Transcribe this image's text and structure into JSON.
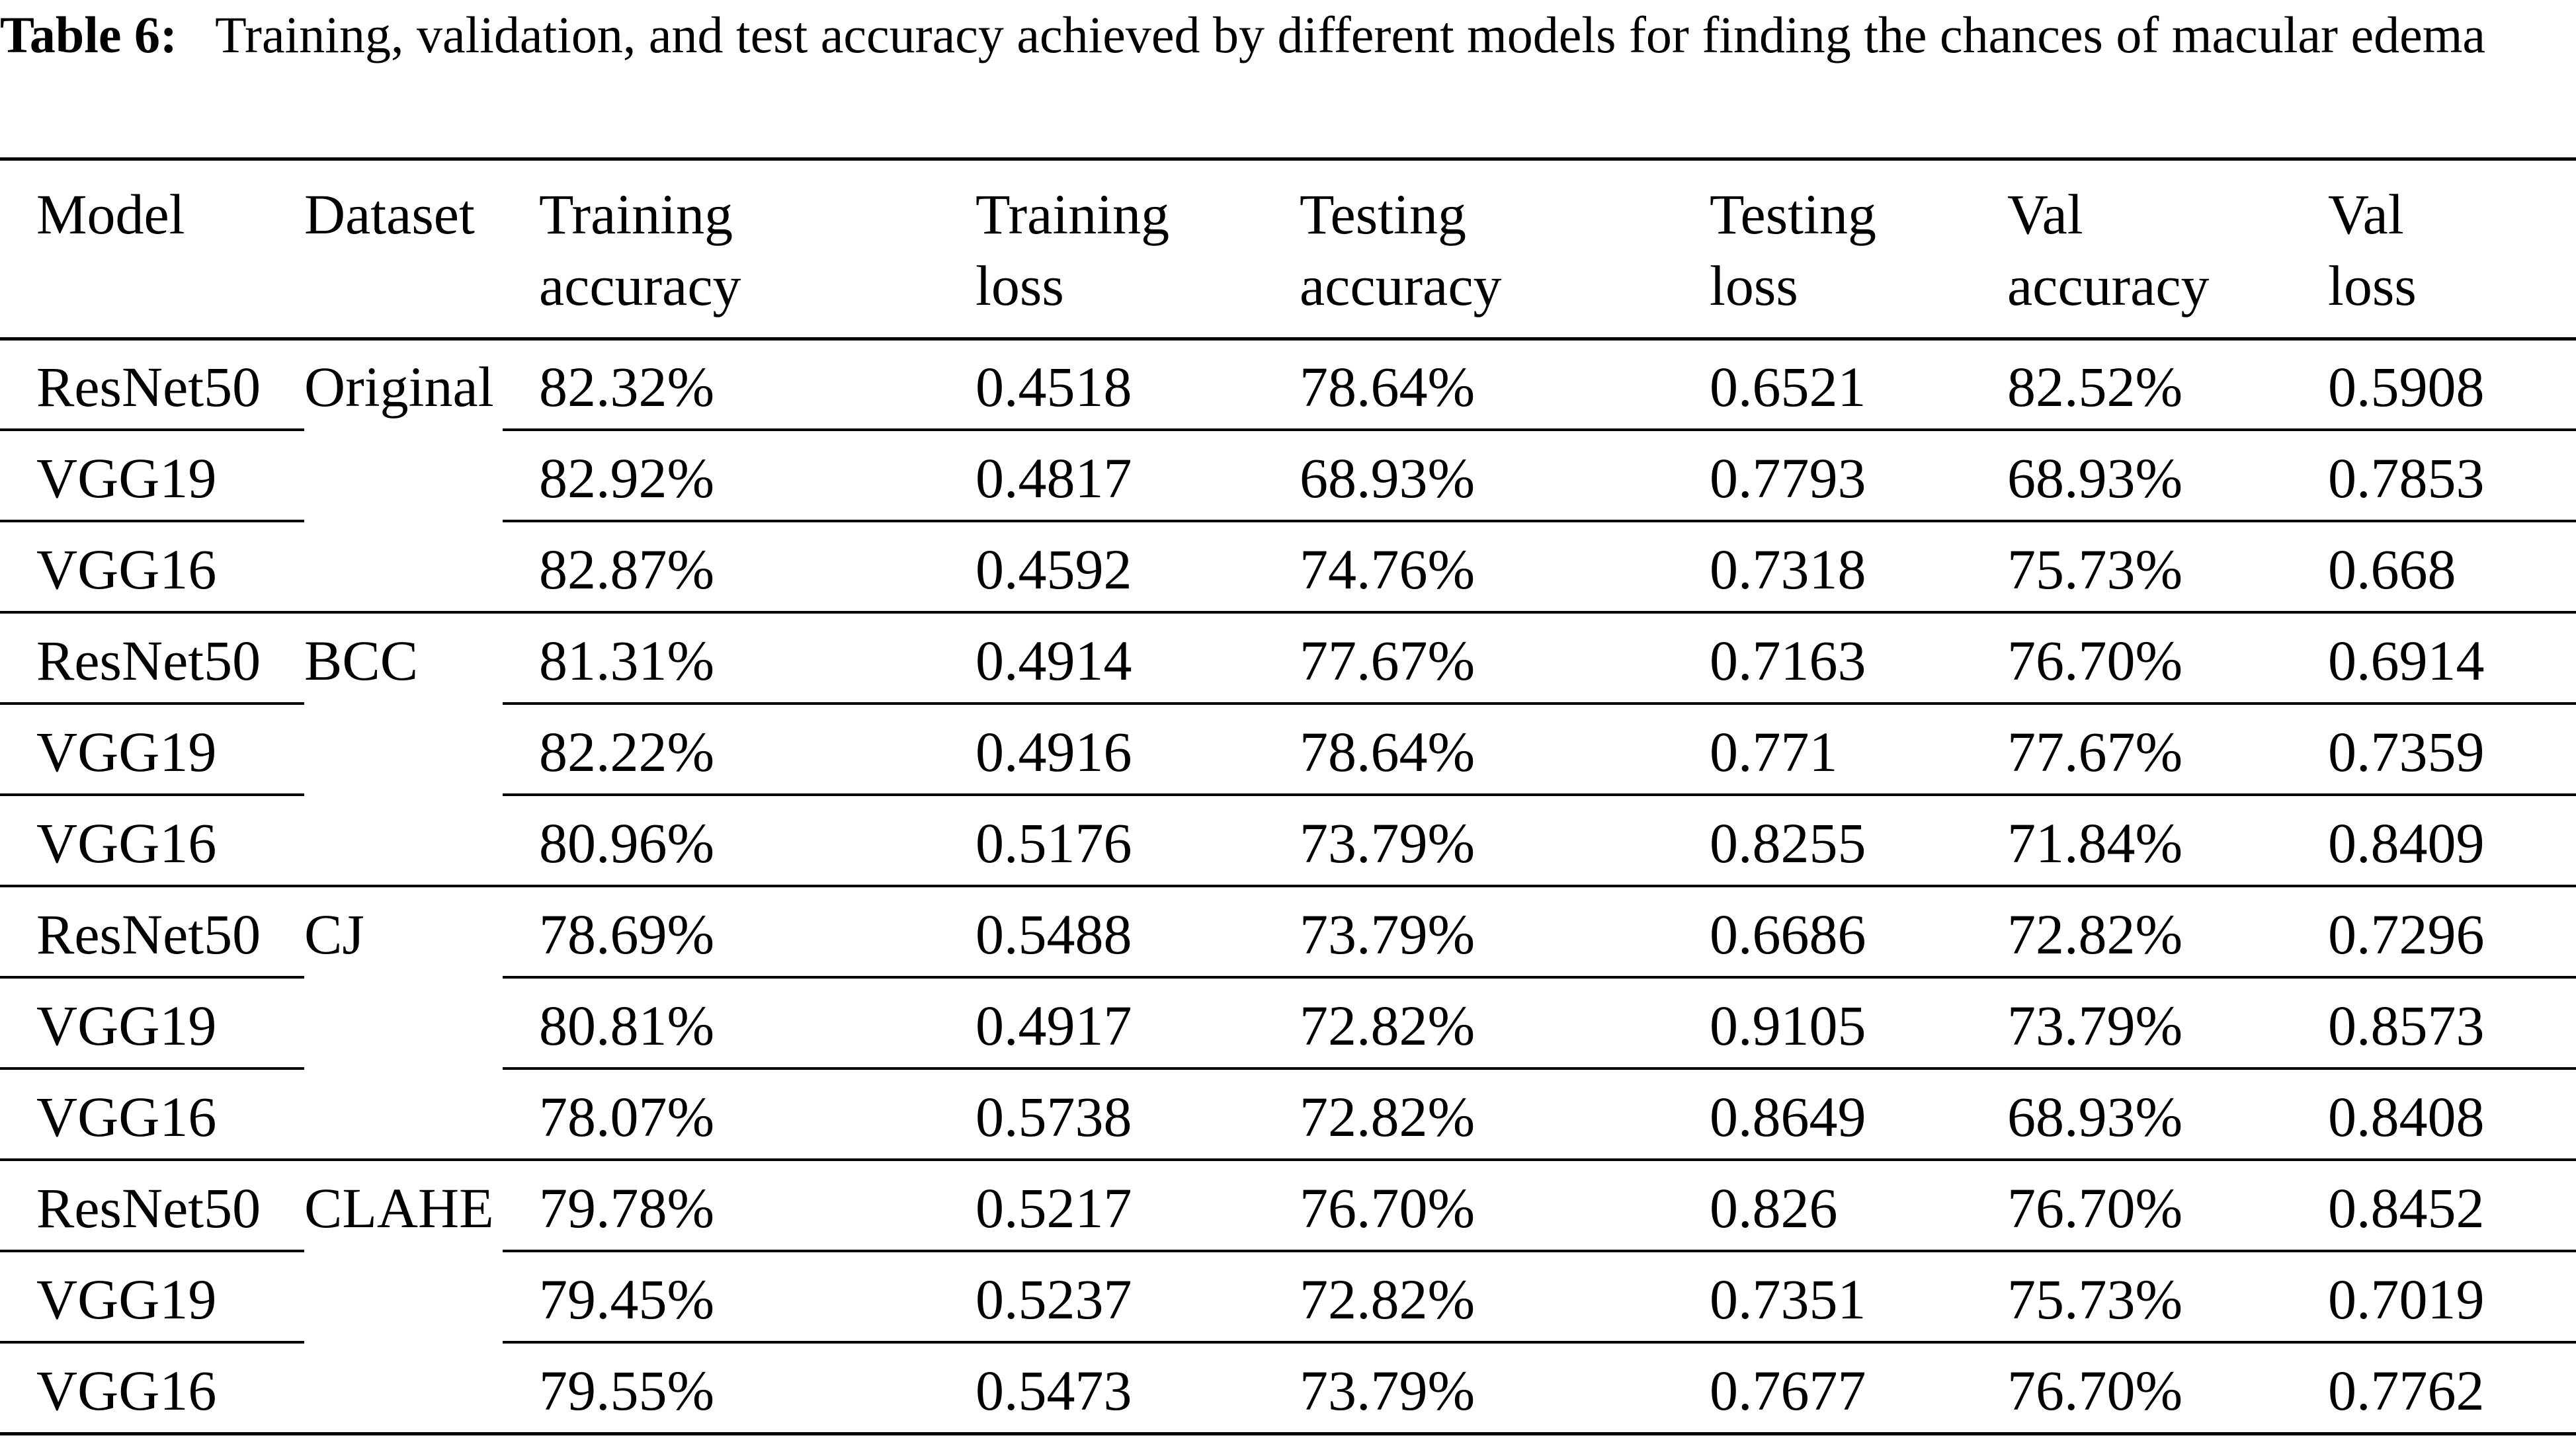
{
  "caption": {
    "label": "Table 6:",
    "text": "Training, validation, and test accuracy achieved by different models for finding the chances of macular edema"
  },
  "table": {
    "headers": [
      [
        "Model",
        ""
      ],
      [
        "Dataset",
        ""
      ],
      [
        "Training",
        "accuracy"
      ],
      [
        "Training",
        "loss"
      ],
      [
        "Testing",
        "accuracy"
      ],
      [
        "Testing",
        "loss"
      ],
      [
        "Val",
        "accuracy"
      ],
      [
        "Val",
        "loss"
      ]
    ],
    "rows": [
      [
        "ResNet50",
        "Original",
        "82.32%",
        "0.4518",
        "78.64%",
        "0.6521",
        "82.52%",
        "0.5908"
      ],
      [
        "VGG19",
        "",
        "82.92%",
        "0.4817",
        "68.93%",
        "0.7793",
        "68.93%",
        "0.7853"
      ],
      [
        "VGG16",
        "",
        "82.87%",
        "0.4592",
        "74.76%",
        "0.7318",
        "75.73%",
        "0.668"
      ],
      [
        "ResNet50",
        "BCC",
        "81.31%",
        "0.4914",
        "77.67%",
        "0.7163",
        "76.70%",
        "0.6914"
      ],
      [
        "VGG19",
        "",
        "82.22%",
        "0.4916",
        "78.64%",
        "0.771",
        "77.67%",
        "0.7359"
      ],
      [
        "VGG16",
        "",
        "80.96%",
        "0.5176",
        "73.79%",
        "0.8255",
        "71.84%",
        "0.8409"
      ],
      [
        "ResNet50",
        "CJ",
        "78.69%",
        "0.5488",
        "73.79%",
        "0.6686",
        "72.82%",
        "0.7296"
      ],
      [
        "VGG19",
        "",
        "80.81%",
        "0.4917",
        "72.82%",
        "0.9105",
        "73.79%",
        "0.8573"
      ],
      [
        "VGG16",
        "",
        "78.07%",
        "0.5738",
        "72.82%",
        "0.8649",
        "68.93%",
        "0.8408"
      ],
      [
        "ResNet50",
        "CLAHE",
        "79.78%",
        "0.5217",
        "76.70%",
        "0.826",
        "76.70%",
        "0.8452"
      ],
      [
        "VGG19",
        "",
        "79.45%",
        "0.5237",
        "72.82%",
        "0.7351",
        "75.73%",
        "0.7019"
      ],
      [
        "VGG16",
        "",
        "79.55%",
        "0.5473",
        "73.79%",
        "0.7677",
        "76.70%",
        "0.7762"
      ]
    ]
  }
}
